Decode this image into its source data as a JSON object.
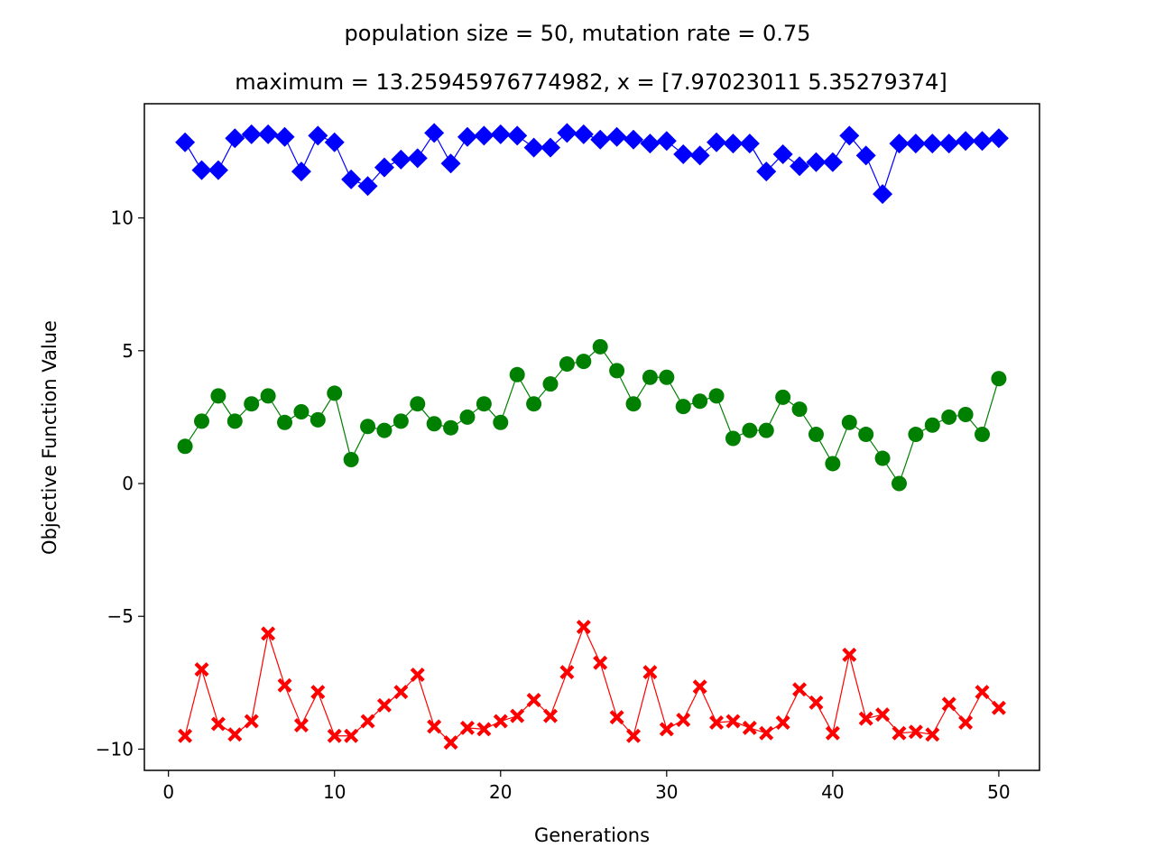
{
  "chart_data": {
    "type": "line",
    "title": "population size = 50, mutation rate = 0.75",
    "subtitle": "maximum = 13.25945976774982, x = [7.97023011 5.35279374]",
    "xlabel": "Generations",
    "ylabel": "Objective Function Value",
    "xlim": [
      -1.45,
      52.45
    ],
    "ylim": [
      -10.8,
      14.3
    ],
    "x_ticks": [
      0,
      10,
      20,
      30,
      40,
      50
    ],
    "x_tick_labels": [
      "0",
      "10",
      "20",
      "30",
      "40",
      "50"
    ],
    "y_ticks": [
      -10,
      -5,
      0,
      5,
      10
    ],
    "y_tick_labels": [
      "−10",
      "−5",
      "0",
      "5",
      "10"
    ],
    "grid": false,
    "x": [
      1,
      2,
      3,
      4,
      5,
      6,
      7,
      8,
      9,
      10,
      11,
      12,
      13,
      14,
      15,
      16,
      17,
      18,
      19,
      20,
      21,
      22,
      23,
      24,
      25,
      26,
      27,
      28,
      29,
      30,
      31,
      32,
      33,
      34,
      35,
      36,
      37,
      38,
      39,
      40,
      41,
      42,
      43,
      44,
      45,
      46,
      47,
      48,
      49,
      50
    ],
    "series": [
      {
        "color": "#0000ff",
        "marker": "diamond",
        "values": [
          12.85,
          11.8,
          11.8,
          13.0,
          13.15,
          13.15,
          13.05,
          11.75,
          13.1,
          12.85,
          11.45,
          11.2,
          11.9,
          12.2,
          12.25,
          13.2,
          12.05,
          13.05,
          13.1,
          13.15,
          13.1,
          12.65,
          12.65,
          13.2,
          13.15,
          12.95,
          13.05,
          12.95,
          12.8,
          12.9,
          12.4,
          12.35,
          12.85,
          12.8,
          12.8,
          11.75,
          12.4,
          11.95,
          12.1,
          12.1,
          13.1,
          12.35,
          10.9,
          12.8,
          12.8,
          12.8,
          12.8,
          12.9,
          12.9,
          13.0
        ]
      },
      {
        "color": "#008000",
        "marker": "circle",
        "values": [
          1.4,
          2.35,
          3.3,
          2.35,
          3.0,
          3.3,
          2.3,
          2.7,
          2.4,
          3.4,
          0.9,
          2.15,
          2.0,
          2.35,
          3.0,
          2.25,
          2.1,
          2.5,
          3.0,
          2.3,
          4.1,
          3.0,
          3.75,
          4.5,
          4.6,
          5.15,
          4.25,
          3.0,
          4.0,
          4.0,
          2.9,
          3.1,
          3.3,
          1.7,
          2.0,
          2.0,
          3.25,
          2.8,
          1.85,
          0.75,
          2.3,
          1.85,
          0.95,
          0.0,
          1.85,
          2.2,
          2.5,
          2.6,
          1.85,
          3.95
        ]
      },
      {
        "color": "#ff0000",
        "marker": "x",
        "values": [
          -9.5,
          -7.0,
          -9.05,
          -9.45,
          -8.95,
          -5.65,
          -7.6,
          -9.1,
          -7.85,
          -9.5,
          -9.5,
          -8.95,
          -8.35,
          -7.85,
          -7.2,
          -9.15,
          -9.75,
          -9.2,
          -9.25,
          -8.95,
          -8.75,
          -8.15,
          -8.75,
          -7.1,
          -5.4,
          -6.75,
          -8.8,
          -9.5,
          -7.1,
          -9.25,
          -8.9,
          -7.65,
          -9.0,
          -8.95,
          -9.2,
          -9.4,
          -9.0,
          -7.75,
          -8.25,
          -9.4,
          -6.45,
          -8.85,
          -8.7,
          -9.4,
          -9.35,
          -9.45,
          -8.3,
          -9.0,
          -7.85,
          -8.45
        ]
      }
    ]
  }
}
